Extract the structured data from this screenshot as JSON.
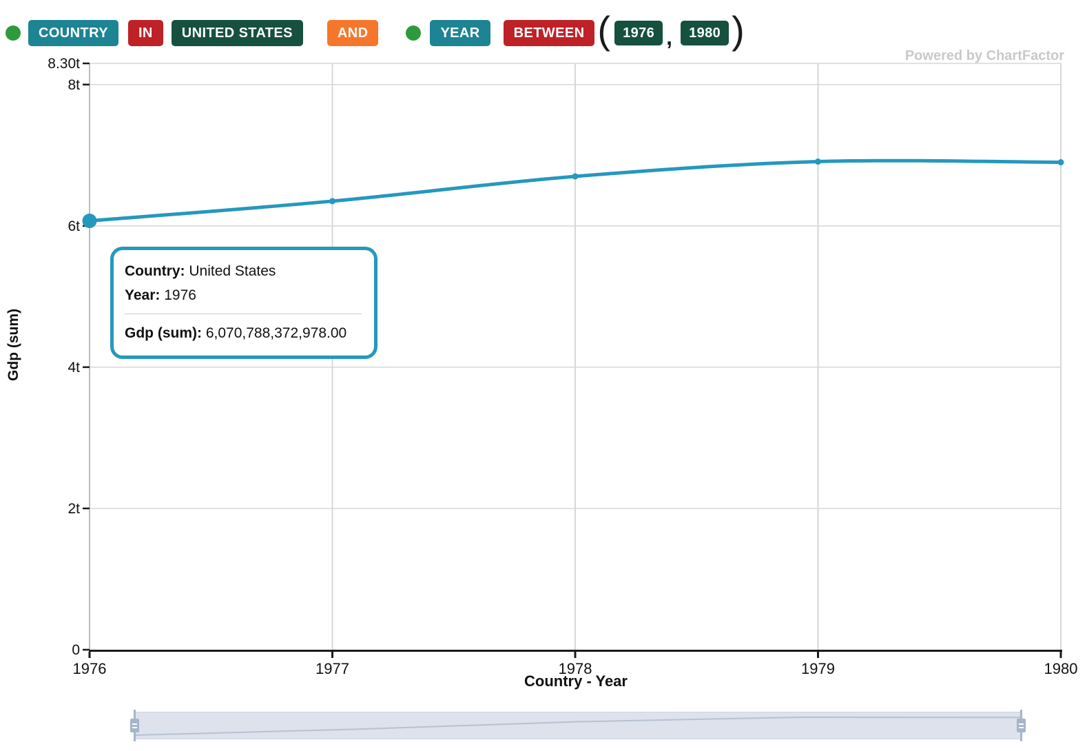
{
  "filter_bar": {
    "filters": [
      {
        "field": "COUNTRY",
        "operator": "IN",
        "value": "UNITED STATES"
      },
      {
        "field": "YEAR",
        "operator": "BETWEEN",
        "value_from": "1976",
        "value_to": "1980"
      }
    ],
    "conjunction": "AND",
    "paren_open": "(",
    "comma": ",",
    "paren_close": ")"
  },
  "watermark": "Powered by ChartFactor",
  "tooltip": {
    "rows": [
      {
        "label": "Country:",
        "value": "United States"
      },
      {
        "label": "Year:",
        "value": "1976"
      }
    ],
    "metric": {
      "label": "Gdp (sum):",
      "value": "6,070,788,372,978.00"
    }
  },
  "chart_data": {
    "type": "line",
    "title": "",
    "xlabel": "Country - Year",
    "ylabel": "Gdp (sum)",
    "x": [
      "1976",
      "1977",
      "1978",
      "1979",
      "1980"
    ],
    "series": [
      {
        "name": "Gdp (sum)",
        "unit": "trillions",
        "values": [
          6.0708,
          6.35,
          6.7,
          6.91,
          6.9
        ]
      }
    ],
    "ylim": [
      0,
      8.3
    ],
    "yticks": [
      {
        "label": "8.30t",
        "value": 8.3
      },
      {
        "label": "8t",
        "value": 8
      },
      {
        "label": "6t",
        "value": 6
      },
      {
        "label": "4t",
        "value": 4
      },
      {
        "label": "2t",
        "value": 2
      },
      {
        "label": "0",
        "value": 0
      }
    ],
    "grid": true,
    "legend": false,
    "line_color": "#2598be",
    "highlighted_point": {
      "x": "1976",
      "value_trillions": 6.0708,
      "exact_value": "6,070,788,372,978.00"
    }
  },
  "colors": {
    "accent_line": "#2598be",
    "chip_teal": "#1d8494",
    "chip_red": "#be2126",
    "chip_dark_green": "#16503f",
    "chip_orange": "#f6772c",
    "indicator_green": "#2e9a3d",
    "gridline": "#d7d7d7",
    "navigator_fill": "#dde2ec",
    "navigator_handle": "#a6b5cb",
    "watermark_gray": "#c9c9c9"
  }
}
